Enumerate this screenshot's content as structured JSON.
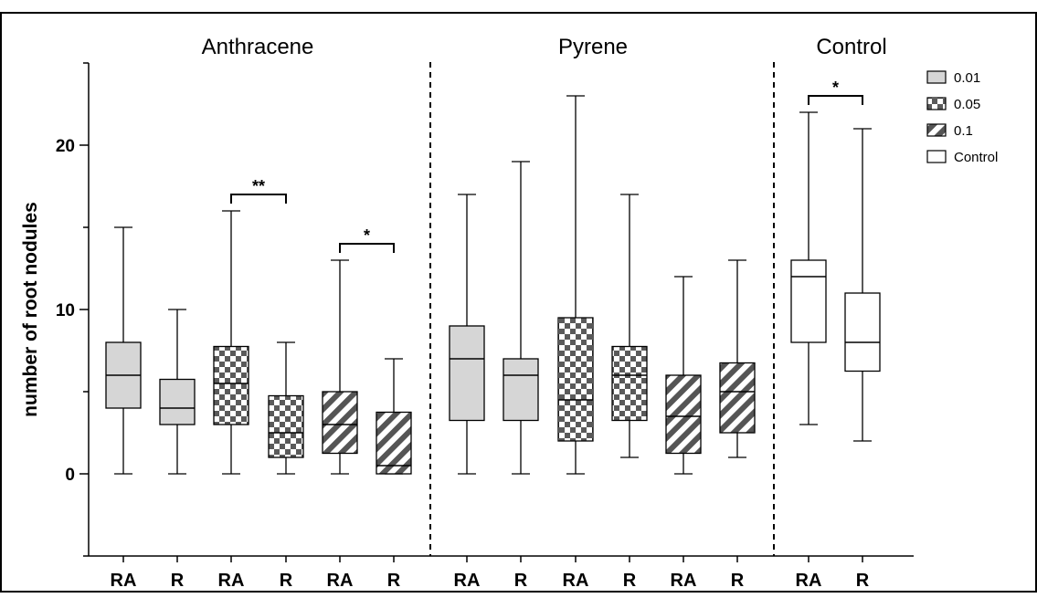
{
  "chart_data": {
    "type": "box",
    "ylabel": "number of root nodules",
    "ylim": [
      -5,
      25
    ],
    "yticks": [
      0,
      10,
      20
    ],
    "groups": [
      "Anthracene",
      "Pyrene",
      "Control"
    ],
    "legend": {
      "position": "top-right",
      "items": [
        {
          "label": "0.01",
          "pattern": "solid-gray"
        },
        {
          "label": "0.05",
          "pattern": "checker"
        },
        {
          "label": "0.1",
          "pattern": "diagonal"
        },
        {
          "label": "Control",
          "pattern": "white"
        }
      ]
    },
    "boxes": [
      {
        "group": "Anthracene",
        "category": "RA",
        "concentration": "0.01",
        "min": 0,
        "q1": 4,
        "median": 6,
        "q3": 8,
        "max": 15
      },
      {
        "group": "Anthracene",
        "category": "R",
        "concentration": "0.01",
        "min": 0,
        "q1": 3,
        "median": 4,
        "q3": 5.75,
        "max": 10
      },
      {
        "group": "Anthracene",
        "category": "RA",
        "concentration": "0.05",
        "min": 0,
        "q1": 3,
        "median": 5.5,
        "q3": 7.75,
        "max": 16
      },
      {
        "group": "Anthracene",
        "category": "R",
        "concentration": "0.05",
        "min": 0,
        "q1": 1,
        "median": 2.5,
        "q3": 4.75,
        "max": 8
      },
      {
        "group": "Anthracene",
        "category": "RA",
        "concentration": "0.1",
        "min": 0,
        "q1": 1.25,
        "median": 3,
        "q3": 5,
        "max": 13
      },
      {
        "group": "Anthracene",
        "category": "R",
        "concentration": "0.1",
        "min": 0,
        "q1": 0,
        "median": 0.5,
        "q3": 3.75,
        "max": 7
      },
      {
        "group": "Pyrene",
        "category": "RA",
        "concentration": "0.01",
        "min": 0,
        "q1": 3.25,
        "median": 7,
        "q3": 9,
        "max": 17
      },
      {
        "group": "Pyrene",
        "category": "R",
        "concentration": "0.01",
        "min": 0,
        "q1": 3.25,
        "median": 6,
        "q3": 7,
        "max": 19
      },
      {
        "group": "Pyrene",
        "category": "RA",
        "concentration": "0.05",
        "min": 0,
        "q1": 2,
        "median": 4.5,
        "q3": 9.5,
        "max": 23
      },
      {
        "group": "Pyrene",
        "category": "R",
        "concentration": "0.05",
        "min": 1,
        "q1": 3.25,
        "median": 6,
        "q3": 7.75,
        "max": 17
      },
      {
        "group": "Pyrene",
        "category": "RA",
        "concentration": "0.1",
        "min": 0,
        "q1": 1.25,
        "median": 3.5,
        "q3": 6,
        "max": 12
      },
      {
        "group": "Pyrene",
        "category": "R",
        "concentration": "0.1",
        "min": 1,
        "q1": 2.5,
        "median": 5,
        "q3": 6.75,
        "max": 13
      },
      {
        "group": "Control",
        "category": "RA",
        "concentration": "Control",
        "min": 3,
        "q1": 8,
        "median": 12,
        "q3": 13,
        "max": 22
      },
      {
        "group": "Control",
        "category": "R",
        "concentration": "Control",
        "min": 2,
        "q1": 6.25,
        "median": 8,
        "q3": 11,
        "max": 21
      }
    ],
    "significance": [
      {
        "from": 2,
        "to": 3,
        "label": "**",
        "y": 17
      },
      {
        "from": 4,
        "to": 5,
        "label": "*",
        "y": 14
      },
      {
        "from": 12,
        "to": 13,
        "label": "*",
        "y": 23
      }
    ]
  }
}
